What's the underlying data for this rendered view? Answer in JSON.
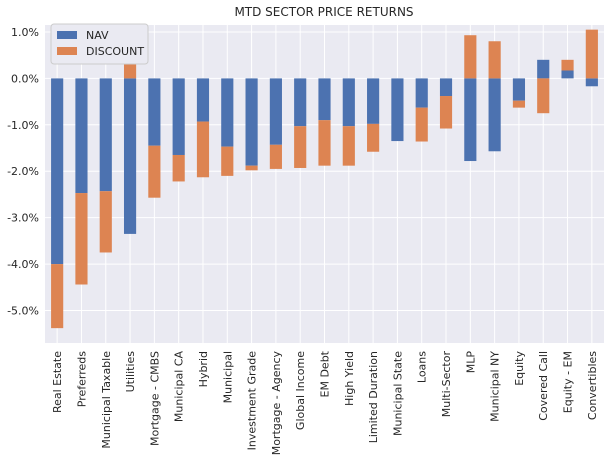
{
  "chart_data": {
    "type": "bar",
    "stacked": true,
    "title": "MTD SECTOR PRICE RETURNS",
    "xlabel": "",
    "ylabel": "",
    "ylim": [
      -5.7,
      1.15
    ],
    "yticks": [
      1,
      0,
      -1,
      -2,
      -3,
      -4,
      -5
    ],
    "ytick_labels": [
      "1.0%",
      "0.0%",
      "-1.0%",
      "-2.0%",
      "-3.0%",
      "-4.0%",
      "-5.0%"
    ],
    "grid": true,
    "legend_position": "top-left",
    "categories": [
      "Real Estate",
      "Preferreds",
      "Municipal Taxable",
      "Utilities",
      "Mortgage - CMBS",
      "Municipal CA",
      "Hybrid",
      "Municipal",
      "Investment Grade",
      "Mortgage - Agency",
      "Global Income",
      "EM Debt",
      "High Yield",
      "Limited Duration",
      "Municipal State",
      "Loans",
      "Multi-Sector",
      "MLP",
      "Municipal NY",
      "Equity",
      "Covered Call",
      "Equity - EM",
      "Convertibles"
    ],
    "series": [
      {
        "name": "NAV",
        "color": "#4c72b0",
        "values": [
          -4.0,
          -2.47,
          -2.43,
          -3.35,
          -1.45,
          -1.65,
          -0.93,
          -1.47,
          -1.88,
          -1.43,
          -1.03,
          -0.9,
          -1.03,
          -0.98,
          -1.35,
          -0.63,
          -0.38,
          -1.78,
          -1.57,
          -0.48,
          0.4,
          0.17,
          -0.17
        ]
      },
      {
        "name": "DISCOUNT",
        "color": "#dd8452",
        "values": [
          -1.38,
          -1.97,
          -1.32,
          0.4,
          -1.12,
          -0.57,
          -1.2,
          -0.63,
          -0.1,
          -0.52,
          -0.9,
          -0.98,
          -0.85,
          -0.6,
          0.0,
          -0.73,
          -0.7,
          0.93,
          0.8,
          -0.15,
          -0.75,
          0.23,
          1.05
        ]
      }
    ]
  }
}
